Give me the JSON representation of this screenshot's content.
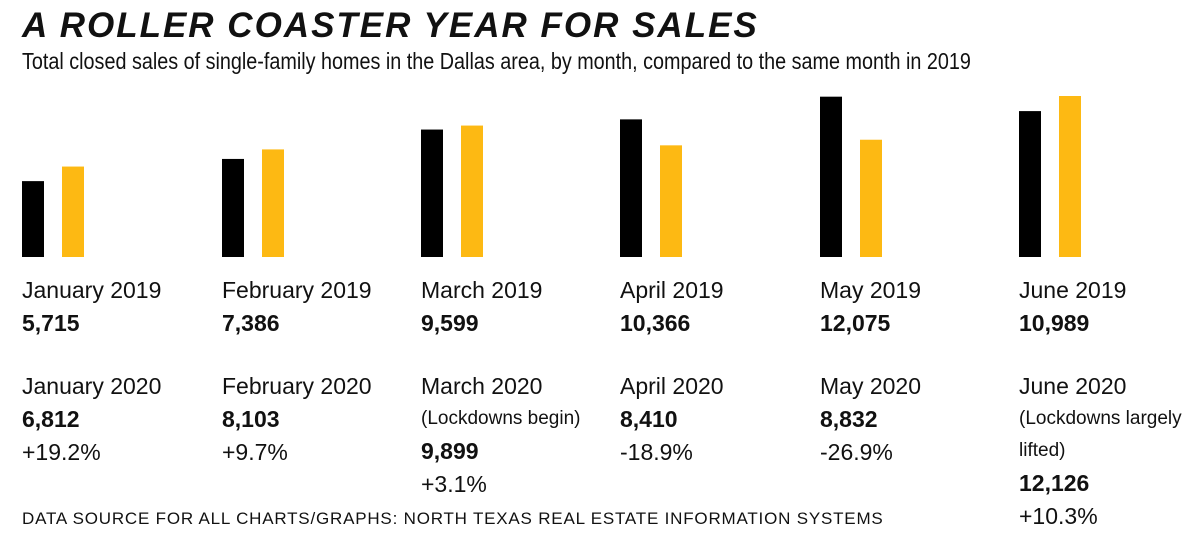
{
  "title": "A ROLLER COASTER YEAR FOR SALES",
  "subtitle": "Total closed sales of single-family homes in the Dallas area, by month, compared to the same month in 2019",
  "source": "DATA SOURCE FOR ALL CHARTS/GRAPHS: NORTH TEXAS REAL ESTATE INFORMATION SYSTEMS",
  "colors": {
    "y2019": "#000000",
    "y2020": "#FDB913"
  },
  "months": [
    {
      "label_2019": "January 2019",
      "value_2019": "5,715",
      "label_2020": "January 2020",
      "note": "",
      "value_2020": "6,812",
      "change": "+19.2%"
    },
    {
      "label_2019": "February 2019",
      "value_2019": "7,386",
      "label_2020": "February 2020",
      "note": "",
      "value_2020": "8,103",
      "change": "+9.7%"
    },
    {
      "label_2019": "March 2019",
      "value_2019": "9,599",
      "label_2020": "March 2020",
      "note": "(Lockdowns begin)",
      "value_2020": "9,899",
      "change": "+3.1%"
    },
    {
      "label_2019": "April 2019",
      "value_2019": "10,366",
      "label_2020": "April 2020",
      "note": "",
      "value_2020": "8,410",
      "change": "-18.9%"
    },
    {
      "label_2019": "May 2019",
      "value_2019": "12,075",
      "label_2020": "May 2020",
      "note": "",
      "value_2020": "8,832",
      "change": "-26.9%"
    },
    {
      "label_2019": "June 2019",
      "value_2019": "10,989",
      "label_2020": "June 2020",
      "note_lines": [
        "(Lockdowns largely",
        "lifted)"
      ],
      "value_2020": "12,126",
      "change": "+10.3%"
    }
  ],
  "chart_data": {
    "type": "bar",
    "title": "A ROLLER COASTER YEAR FOR SALES",
    "subtitle": "Total closed sales of single-family homes in the Dallas area, by month, compared to the same month in 2019",
    "categories": [
      "January",
      "February",
      "March",
      "April",
      "May",
      "June"
    ],
    "series": [
      {
        "name": "2019",
        "values": [
          5715,
          7386,
          9599,
          10366,
          12075,
          10989
        ]
      },
      {
        "name": "2020",
        "values": [
          6812,
          8103,
          9899,
          8410,
          8832,
          12126
        ]
      }
    ],
    "ylim": [
      0,
      12126
    ],
    "grid": false,
    "source": "DATA SOURCE FOR ALL CHARTS/GRAPHS: NORTH TEXAS REAL ESTATE INFORMATION SYSTEMS"
  }
}
